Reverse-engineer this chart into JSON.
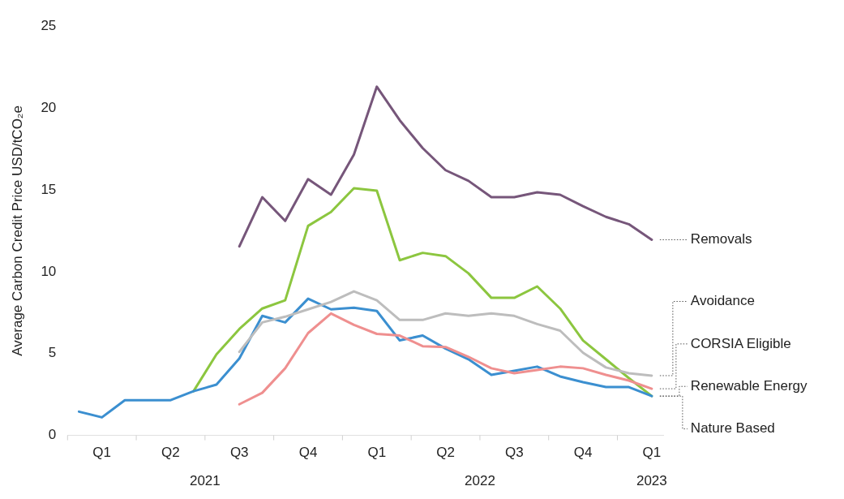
{
  "chart_data": {
    "type": "line",
    "ylabel": "Average Carbon Credit Price USD/tCO₂e",
    "categories": [
      null,
      "Q1",
      null,
      null,
      "Q2",
      null,
      null,
      "Q3",
      null,
      null,
      "Q4",
      null,
      null,
      "Q1",
      null,
      null,
      "Q2",
      null,
      null,
      "Q3",
      null,
      null,
      "Q4",
      null,
      null,
      "Q1"
    ],
    "series": [
      {
        "name": "Removals",
        "color": "#76567a",
        "values": [
          null,
          null,
          null,
          null,
          null,
          null,
          null,
          11.55,
          14.55,
          13.1,
          15.65,
          14.7,
          17.15,
          21.3,
          19.25,
          17.55,
          16.2,
          15.55,
          14.55,
          14.55,
          14.85,
          14.7,
          14.0,
          13.35,
          12.9,
          11.95
        ]
      },
      {
        "name": "Avoidance",
        "color": "#bdbdbd",
        "values": [
          null,
          null,
          null,
          null,
          null,
          null,
          null,
          5.1,
          6.9,
          7.25,
          7.7,
          8.15,
          8.8,
          8.25,
          7.05,
          7.05,
          7.45,
          7.3,
          7.45,
          7.3,
          6.8,
          6.4,
          5.05,
          4.15,
          3.8,
          3.65
        ]
      },
      {
        "name": "CORSIA Eligible",
        "color": "#ef8f8f",
        "values": [
          null,
          null,
          null,
          null,
          null,
          null,
          null,
          1.9,
          2.6,
          4.1,
          6.25,
          7.45,
          6.75,
          6.2,
          6.1,
          5.45,
          5.4,
          4.8,
          4.1,
          3.8,
          4.0,
          4.2,
          4.1,
          3.7,
          3.35,
          2.85
        ]
      },
      {
        "name": "Renewable Energy",
        "color": "#3b8fd0",
        "values": [
          1.45,
          1.1,
          2.15,
          2.15,
          2.15,
          2.7,
          3.1,
          4.7,
          7.3,
          6.9,
          8.35,
          7.7,
          7.8,
          7.6,
          5.8,
          6.1,
          5.3,
          4.65,
          3.7,
          3.95,
          4.2,
          3.6,
          3.25,
          2.95,
          2.95,
          2.4
        ]
      },
      {
        "name": "Nature Based",
        "color": "#8cc63f",
        "values": [
          null,
          null,
          null,
          null,
          null,
          2.7,
          4.95,
          6.5,
          7.75,
          8.25,
          12.8,
          13.65,
          15.1,
          14.95,
          10.7,
          11.15,
          10.95,
          9.9,
          8.4,
          8.4,
          9.1,
          7.75,
          5.8,
          4.65,
          3.5,
          2.4
        ]
      }
    ],
    "ylim": [
      0,
      25
    ],
    "yticks": [
      0,
      5,
      10,
      15,
      20,
      25
    ],
    "annotations": [
      "2021",
      "2022",
      "2023"
    ],
    "legend": false,
    "grid": false,
    "marker": "none",
    "line_style": "solid"
  }
}
